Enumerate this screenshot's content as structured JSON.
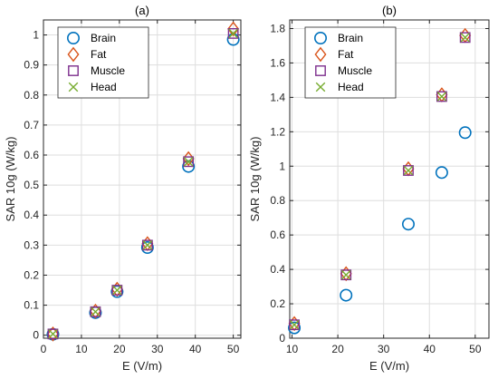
{
  "colors": {
    "brain": "#0072BD",
    "fat": "#D95319",
    "muscle": "#7E2F8E",
    "head": "#77AC30",
    "grid": "#dedede",
    "axis": "#262626"
  },
  "chart_data": [
    {
      "type": "scatter",
      "title": "(a)",
      "xlabel": "E (V/m)",
      "ylabel": "SAR 10g (W/kg)",
      "xlim": [
        0,
        52
      ],
      "ylim": [
        -0.01,
        1.05
      ],
      "xticks": [
        0,
        10,
        20,
        30,
        40,
        50
      ],
      "yticks": [
        0,
        0.1,
        0.2,
        0.3,
        0.4,
        0.5,
        0.6,
        0.7,
        0.8,
        0.9,
        1
      ],
      "grid": true,
      "legend": "top-left",
      "series": [
        {
          "name": "Brain",
          "marker": "circle",
          "x": [
            2.5,
            13.7,
            19.4,
            27.4,
            38.2,
            50.0
          ],
          "y": [
            0.003,
            0.075,
            0.145,
            0.292,
            0.562,
            0.985
          ]
        },
        {
          "name": "Fat",
          "marker": "diamond",
          "x": [
            2.5,
            13.7,
            19.4,
            27.4,
            38.2,
            50.0
          ],
          "y": [
            0.004,
            0.08,
            0.153,
            0.305,
            0.588,
            1.02
          ]
        },
        {
          "name": "Muscle",
          "marker": "square",
          "x": [
            2.5,
            13.7,
            19.4,
            27.4,
            38.2,
            50.0
          ],
          "y": [
            0.004,
            0.078,
            0.15,
            0.3,
            0.578,
            1.005
          ]
        },
        {
          "name": "Head",
          "marker": "x",
          "x": [
            2.5,
            13.7,
            19.4,
            27.4,
            38.2,
            50.0
          ],
          "y": [
            0.004,
            0.078,
            0.15,
            0.3,
            0.578,
            1.005
          ]
        }
      ]
    },
    {
      "type": "scatter",
      "title": "(b)",
      "xlabel": "E (V/m)",
      "ylabel": "SAR 10g (W/kg)",
      "xlim": [
        9.5,
        53
      ],
      "ylim": [
        0,
        1.85
      ],
      "xticks": [
        10,
        20,
        30,
        40,
        50
      ],
      "yticks": [
        0,
        0.2,
        0.4,
        0.6,
        0.8,
        1,
        1.2,
        1.4,
        1.6,
        1.8
      ],
      "grid": true,
      "legend": "top-left",
      "series": [
        {
          "name": "Brain",
          "marker": "circle",
          "x": [
            10.5,
            21.8,
            35.4,
            42.7,
            47.8
          ],
          "y": [
            0.06,
            0.25,
            0.663,
            0.963,
            1.195
          ]
        },
        {
          "name": "Fat",
          "marker": "diamond",
          "x": [
            10.5,
            21.8,
            35.4,
            42.7,
            47.8
          ],
          "y": [
            0.085,
            0.375,
            0.985,
            1.415,
            1.76
          ]
        },
        {
          "name": "Muscle",
          "marker": "square",
          "x": [
            10.5,
            21.8,
            35.4,
            42.7,
            47.8
          ],
          "y": [
            0.078,
            0.368,
            0.975,
            1.405,
            1.748
          ]
        },
        {
          "name": "Head",
          "marker": "x",
          "x": [
            10.5,
            21.8,
            35.4,
            42.7,
            47.8
          ],
          "y": [
            0.078,
            0.368,
            0.975,
            1.405,
            1.748
          ]
        }
      ]
    }
  ]
}
